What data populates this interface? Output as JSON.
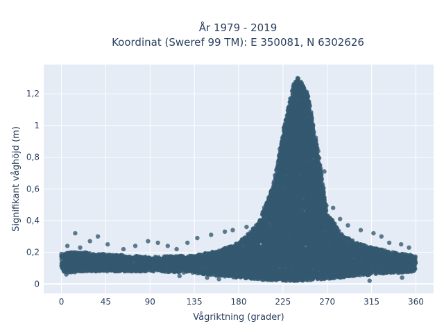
{
  "chart_data": {
    "type": "scatter",
    "title_lines": [
      "År 1979 - 2019",
      "Koordinat (Sweref 99 TM): E 350081, N 6302626"
    ],
    "xlabel": "Vågriktning (grader)",
    "ylabel": "Signifikant våghöjd (m)",
    "xlim": [
      -18,
      378
    ],
    "ylim": [
      -0.06,
      1.385
    ],
    "xticks": [
      0,
      45,
      90,
      135,
      180,
      225,
      270,
      315,
      360
    ],
    "xtick_labels": [
      "0",
      "45",
      "90",
      "135",
      "180",
      "225",
      "270",
      "315",
      "360"
    ],
    "yticks": [
      0,
      0.2,
      0.4,
      0.6,
      0.8,
      1,
      1.2
    ],
    "ytick_labels": [
      "0",
      "0,2",
      "0,4",
      "0,6",
      "0,8",
      "1",
      "1,2"
    ],
    "grid": true,
    "colors": {
      "plot_bg": "#e5ecf6",
      "grid": "#ffffff",
      "marker": "#33586f",
      "text": "#2a3f5f"
    },
    "envelope": {
      "x": [
        0,
        10,
        20,
        45,
        90,
        135,
        160,
        180,
        200,
        215,
        225,
        235,
        240,
        250,
        260,
        270,
        285,
        300,
        315,
        330,
        345,
        360
      ],
      "upper": [
        0.19,
        0.2,
        0.2,
        0.19,
        0.17,
        0.18,
        0.21,
        0.26,
        0.38,
        0.62,
        0.95,
        1.25,
        1.32,
        1.2,
        0.86,
        0.45,
        0.31,
        0.26,
        0.23,
        0.21,
        0.19,
        0.18
      ],
      "lower": [
        0.08,
        0.07,
        0.08,
        0.08,
        0.08,
        0.07,
        0.05,
        0.04,
        0.03,
        0.02,
        0.02,
        0.02,
        0.02,
        0.02,
        0.03,
        0.03,
        0.04,
        0.05,
        0.06,
        0.07,
        0.07,
        0.08
      ]
    },
    "outliers": [
      {
        "x": 14,
        "y": 0.32
      },
      {
        "x": 37,
        "y": 0.3
      },
      {
        "x": 29,
        "y": 0.27
      },
      {
        "x": 47,
        "y": 0.25
      },
      {
        "x": 75,
        "y": 0.24
      },
      {
        "x": 88,
        "y": 0.27
      },
      {
        "x": 98,
        "y": 0.26
      },
      {
        "x": 108,
        "y": 0.24
      },
      {
        "x": 128,
        "y": 0.26
      },
      {
        "x": 138,
        "y": 0.29
      },
      {
        "x": 152,
        "y": 0.31
      },
      {
        "x": 166,
        "y": 0.33
      },
      {
        "x": 174,
        "y": 0.34
      },
      {
        "x": 188,
        "y": 0.36
      },
      {
        "x": 267,
        "y": 0.71
      },
      {
        "x": 276,
        "y": 0.48
      },
      {
        "x": 283,
        "y": 0.41
      },
      {
        "x": 291,
        "y": 0.37
      },
      {
        "x": 304,
        "y": 0.34
      },
      {
        "x": 317,
        "y": 0.32
      },
      {
        "x": 325,
        "y": 0.3
      },
      {
        "x": 333,
        "y": 0.26
      },
      {
        "x": 345,
        "y": 0.25
      },
      {
        "x": 353,
        "y": 0.23
      },
      {
        "x": 6,
        "y": 0.24
      },
      {
        "x": 19,
        "y": 0.23
      },
      {
        "x": 63,
        "y": 0.22
      },
      {
        "x": 117,
        "y": 0.22
      },
      {
        "x": 120,
        "y": 0.05
      },
      {
        "x": 148,
        "y": 0.04
      },
      {
        "x": 160,
        "y": 0.03
      },
      {
        "x": 313,
        "y": 0.02
      },
      {
        "x": 346,
        "y": 0.04
      },
      {
        "x": 5,
        "y": 0.06
      }
    ]
  }
}
